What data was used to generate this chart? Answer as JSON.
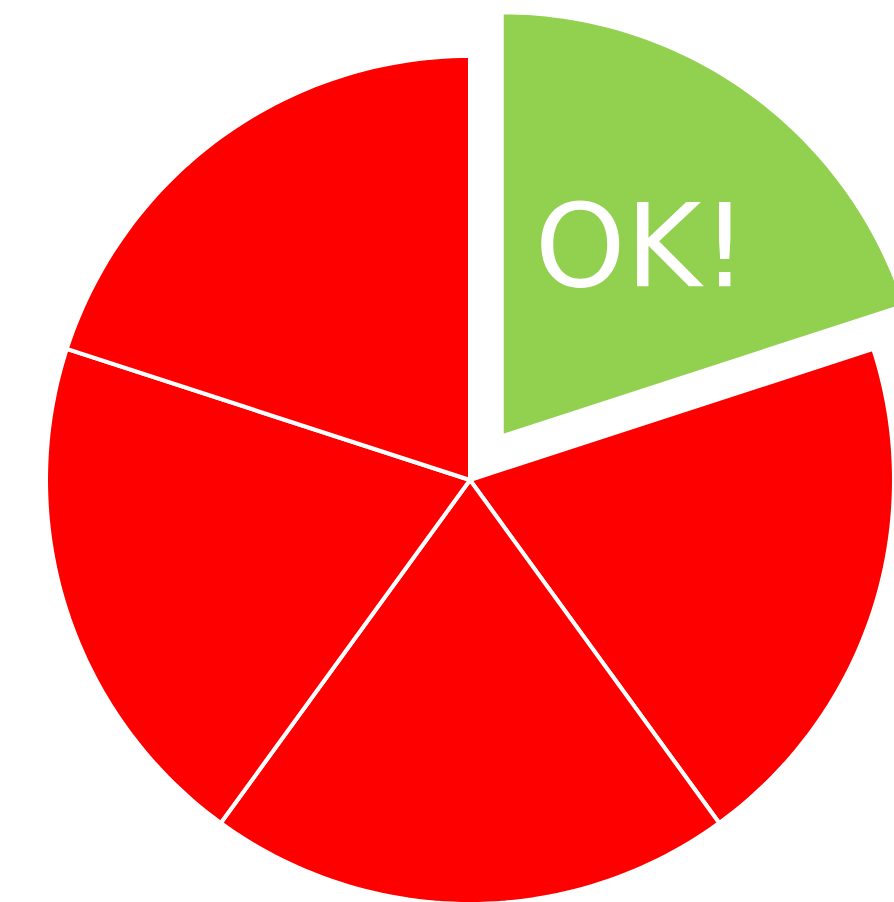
{
  "chart_data": {
    "type": "pie",
    "categories": [
      "OK!",
      null,
      null,
      null,
      null
    ],
    "values": [
      20,
      20,
      20,
      20,
      20
    ],
    "colors": [
      "#92d050",
      "#ff0000",
      "#ff0000",
      "#ff0000",
      "#ff0000"
    ]
  }
}
